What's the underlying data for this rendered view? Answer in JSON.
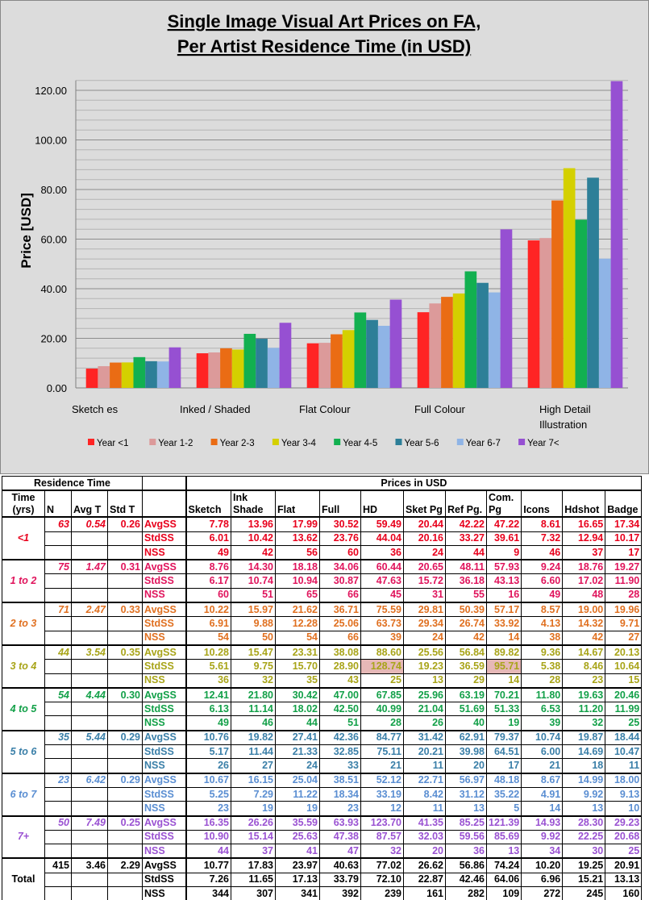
{
  "chart_data": {
    "type": "bar",
    "title": [
      "Single Image Visual Art Prices on FA,",
      "Per Artist Residence Time (in USD)"
    ],
    "xlabel": "",
    "ylabel": "Price [USD]",
    "ylim": [
      0,
      124
    ],
    "yticks": [
      "0.00",
      "20.00",
      "40.00",
      "60.00",
      "80.00",
      "100.00",
      "120.00"
    ],
    "grid": true,
    "legend_position": "bottom",
    "categories": [
      "Sketch es",
      "Inked / Shaded",
      "Flat Colour",
      "Full Colour",
      "High Detail Illustration"
    ],
    "series": [
      {
        "name": "Year <1",
        "color": "#ff2424",
        "values": [
          7.78,
          13.96,
          17.99,
          30.52,
          59.49
        ]
      },
      {
        "name": "Year 1-2",
        "color": "#dc9a9a",
        "values": [
          8.76,
          14.3,
          18.18,
          34.06,
          60.44
        ]
      },
      {
        "name": "Year 2-3",
        "color": "#ea6c14",
        "values": [
          10.22,
          15.97,
          21.62,
          36.71,
          75.59
        ]
      },
      {
        "name": "Year 3-4",
        "color": "#d4d000",
        "values": [
          10.28,
          15.47,
          23.31,
          38.08,
          88.6
        ]
      },
      {
        "name": "Year 4-5",
        "color": "#12b050",
        "values": [
          12.41,
          21.8,
          30.42,
          47.0,
          67.85
        ]
      },
      {
        "name": "Year 5-6",
        "color": "#2d7f98",
        "values": [
          10.76,
          19.82,
          27.41,
          42.36,
          84.77
        ]
      },
      {
        "name": "Year 6-7",
        "color": "#8fb4e6",
        "values": [
          10.67,
          16.15,
          25.04,
          38.51,
          52.12
        ]
      },
      {
        "name": "Year 7<",
        "color": "#9650d2",
        "values": [
          16.35,
          26.26,
          35.59,
          63.93,
          123.7
        ]
      }
    ]
  },
  "table": {
    "group_headers": {
      "residence": "Residence Time",
      "prices": "Prices in USD"
    },
    "columns": [
      "Time (yrs)",
      "N",
      "Avg T",
      "Std T",
      "",
      "Sketch",
      "Ink Shade",
      "Flat",
      "Full",
      "HD",
      "Sket Pg",
      "Ref Pg.",
      "Com. Pg",
      "Icons",
      "Hdshot",
      "Badge"
    ],
    "groups": [
      {
        "label": "<1",
        "color": "#e8001c",
        "n": "63",
        "avg_t": "0.54",
        "std_t": "0.26",
        "rows": [
          {
            "stat": "AvgSS",
            "values": [
              "7.78",
              "13.96",
              "17.99",
              "30.52",
              "59.49",
              "20.44",
              "42.22",
              "47.22",
              "8.61",
              "16.65",
              "17.34"
            ]
          },
          {
            "stat": "StdSS",
            "values": [
              "6.01",
              "10.42",
              "13.62",
              "23.76",
              "44.04",
              "20.16",
              "33.27",
              "39.61",
              "7.32",
              "12.94",
              "10.17"
            ]
          },
          {
            "stat": "NSS",
            "values": [
              "49",
              "42",
              "56",
              "60",
              "36",
              "24",
              "44",
              "9",
              "46",
              "37",
              "17"
            ]
          }
        ]
      },
      {
        "label": "1 to 2",
        "color": "#e0145c",
        "n": "75",
        "avg_t": "1.47",
        "std_t": "0.31",
        "rows": [
          {
            "stat": "AvgSS",
            "values": [
              "8.76",
              "14.30",
              "18.18",
              "34.06",
              "60.44",
              "20.65",
              "48.11",
              "57.93",
              "9.24",
              "18.76",
              "19.27"
            ]
          },
          {
            "stat": "StdSS",
            "values": [
              "6.17",
              "10.74",
              "10.94",
              "30.87",
              "47.63",
              "15.72",
              "36.18",
              "43.13",
              "6.60",
              "17.02",
              "11.90"
            ]
          },
          {
            "stat": "NSS",
            "values": [
              "60",
              "51",
              "65",
              "66",
              "45",
              "31",
              "55",
              "16",
              "49",
              "48",
              "28"
            ]
          }
        ]
      },
      {
        "label": "2 to 3",
        "color": "#e07020",
        "n": "71",
        "avg_t": "2.47",
        "std_t": "0.33",
        "rows": [
          {
            "stat": "AvgSS",
            "values": [
              "10.22",
              "15.97",
              "21.62",
              "36.71",
              "75.59",
              "29.81",
              "50.39",
              "57.17",
              "8.57",
              "19.00",
              "19.96"
            ]
          },
          {
            "stat": "StdSS",
            "values": [
              "6.91",
              "9.88",
              "12.28",
              "25.06",
              "63.73",
              "29.34",
              "26.74",
              "33.92",
              "4.13",
              "14.32",
              "9.71"
            ]
          },
          {
            "stat": "NSS",
            "values": [
              "54",
              "50",
              "54",
              "66",
              "39",
              "24",
              "42",
              "14",
              "38",
              "42",
              "27"
            ]
          }
        ]
      },
      {
        "label": "3 to 4",
        "color": "#a8a418",
        "n": "44",
        "avg_t": "3.54",
        "std_t": "0.35",
        "rows": [
          {
            "stat": "AvgSS",
            "values": [
              "10.28",
              "15.47",
              "23.31",
              "38.08",
              "88.60",
              "25.56",
              "56.84",
              "89.82",
              "9.36",
              "14.67",
              "20.13"
            ]
          },
          {
            "stat": "StdSS",
            "values": [
              "5.61",
              "9.75",
              "15.70",
              "28.90",
              "128.74",
              "19.23",
              "36.59",
              "95.71",
              "5.38",
              "8.46",
              "10.64"
            ],
            "highlight": [
              4,
              7
            ]
          },
          {
            "stat": "NSS",
            "values": [
              "36",
              "32",
              "35",
              "43",
              "25",
              "13",
              "29",
              "14",
              "28",
              "23",
              "15"
            ]
          }
        ]
      },
      {
        "label": "4 to 5",
        "color": "#12a048",
        "n": "54",
        "avg_t": "4.44",
        "std_t": "0.30",
        "rows": [
          {
            "stat": "AvgSS",
            "values": [
              "12.41",
              "21.80",
              "30.42",
              "47.00",
              "67.85",
              "25.96",
              "63.19",
              "70.21",
              "11.80",
              "19.63",
              "20.46"
            ]
          },
          {
            "stat": "StdSS",
            "values": [
              "6.13",
              "11.14",
              "18.02",
              "42.50",
              "40.99",
              "21.04",
              "51.69",
              "51.33",
              "6.53",
              "11.20",
              "11.99"
            ]
          },
          {
            "stat": "NSS",
            "values": [
              "49",
              "46",
              "44",
              "51",
              "28",
              "26",
              "40",
              "19",
              "39",
              "32",
              "25"
            ]
          }
        ]
      },
      {
        "label": "5 to 6",
        "color": "#3a7fa8",
        "n": "35",
        "avg_t": "5.44",
        "std_t": "0.29",
        "rows": [
          {
            "stat": "AvgSS",
            "values": [
              "10.76",
              "19.82",
              "27.41",
              "42.36",
              "84.77",
              "31.42",
              "62.91",
              "79.37",
              "10.74",
              "19.87",
              "18.44"
            ]
          },
          {
            "stat": "StdSS",
            "values": [
              "5.17",
              "11.44",
              "21.33",
              "32.85",
              "75.11",
              "20.21",
              "39.98",
              "64.51",
              "6.00",
              "14.69",
              "10.47"
            ]
          },
          {
            "stat": "NSS",
            "values": [
              "26",
              "27",
              "24",
              "33",
              "21",
              "11",
              "20",
              "17",
              "21",
              "18",
              "11"
            ]
          }
        ]
      },
      {
        "label": "6 to 7",
        "color": "#5a8ed2",
        "n": "23",
        "avg_t": "6.42",
        "std_t": "0.29",
        "rows": [
          {
            "stat": "AvgSS",
            "values": [
              "10.67",
              "16.15",
              "25.04",
              "38.51",
              "52.12",
              "22.71",
              "56.97",
              "48.18",
              "8.67",
              "14.99",
              "18.00"
            ]
          },
          {
            "stat": "StdSS",
            "values": [
              "5.25",
              "7.29",
              "11.22",
              "18.34",
              "33.19",
              "8.42",
              "31.12",
              "35.22",
              "4.91",
              "9.92",
              "9.13"
            ]
          },
          {
            "stat": "NSS",
            "values": [
              "23",
              "19",
              "19",
              "23",
              "12",
              "11",
              "13",
              "5",
              "14",
              "13",
              "10"
            ]
          }
        ]
      },
      {
        "label": "7+",
        "color": "#9a52d2",
        "n": "50",
        "avg_t": "7.49",
        "std_t": "0.25",
        "rows": [
          {
            "stat": "AvgSS",
            "values": [
              "16.35",
              "26.26",
              "35.59",
              "63.93",
              "123.70",
              "41.35",
              "85.25",
              "121.39",
              "14.93",
              "28.30",
              "29.23"
            ]
          },
          {
            "stat": "StdSS",
            "values": [
              "10.90",
              "15.14",
              "25.63",
              "47.38",
              "87.57",
              "32.03",
              "59.56",
              "85.69",
              "9.92",
              "22.25",
              "20.68"
            ]
          },
          {
            "stat": "NSS",
            "values": [
              "44",
              "37",
              "41",
              "47",
              "32",
              "20",
              "36",
              "13",
              "34",
              "30",
              "25"
            ]
          }
        ]
      },
      {
        "label": "Total",
        "color": "#000000",
        "n": "415",
        "avg_t": "3.46",
        "std_t": "2.29",
        "total": true,
        "rows": [
          {
            "stat": "AvgSS",
            "values": [
              "10.77",
              "17.83",
              "23.97",
              "40.63",
              "77.02",
              "26.62",
              "56.86",
              "74.24",
              "10.20",
              "19.25",
              "20.91"
            ]
          },
          {
            "stat": "StdSS",
            "values": [
              "7.26",
              "11.65",
              "17.13",
              "33.79",
              "72.10",
              "22.87",
              "42.46",
              "64.06",
              "6.96",
              "15.21",
              "13.13"
            ]
          },
          {
            "stat": "NSS",
            "values": [
              "344",
              "307",
              "341",
              "392",
              "239",
              "161",
              "282",
              "109",
              "272",
              "245",
              "160"
            ]
          }
        ]
      }
    ]
  }
}
